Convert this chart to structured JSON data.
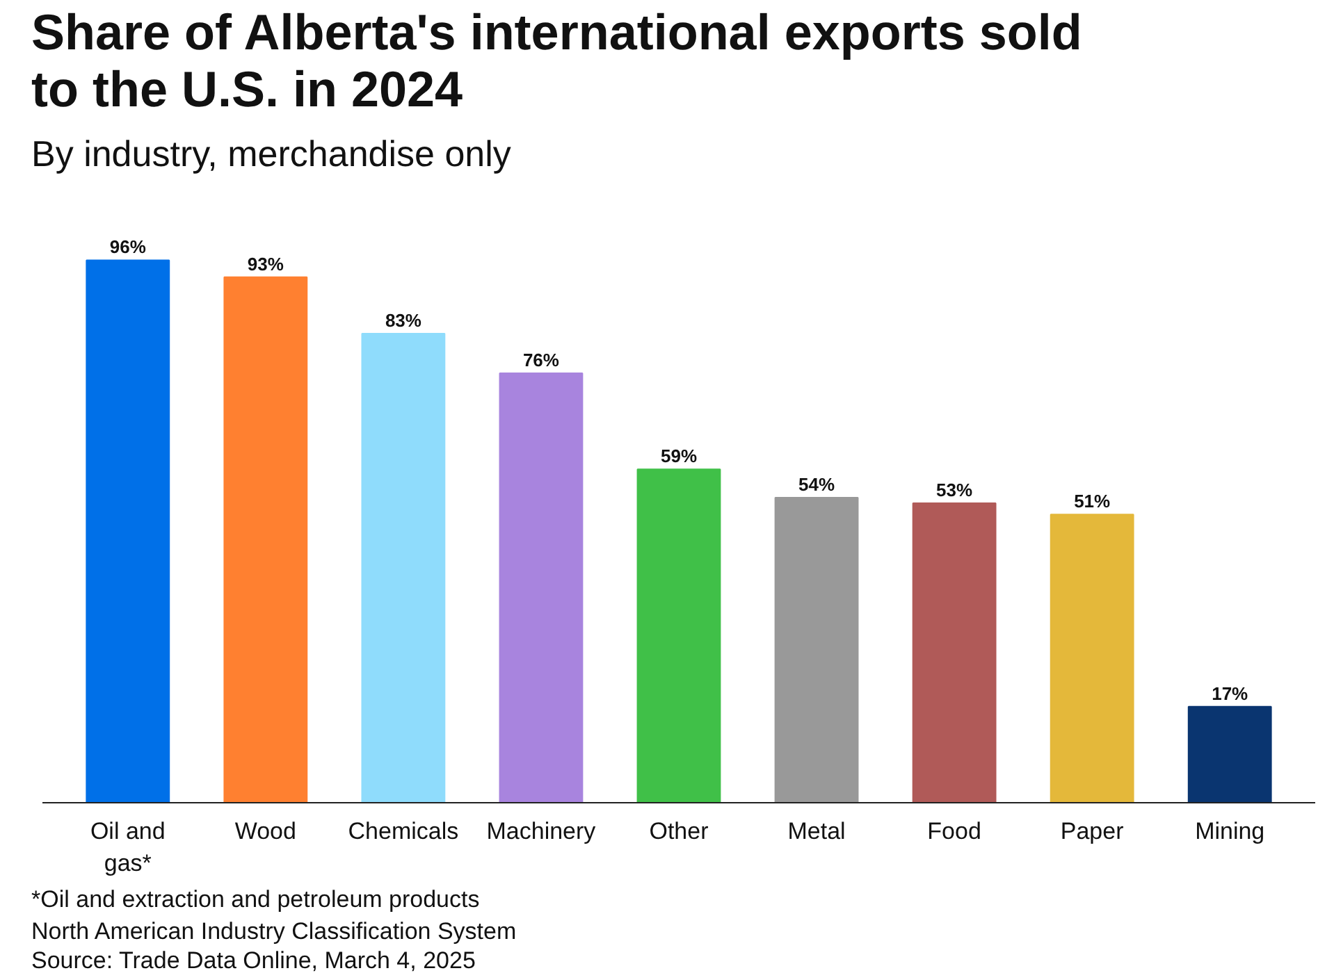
{
  "chart_data": {
    "type": "bar",
    "title": "Share of Alberta's international exports sold to the U.S. in 2024",
    "subtitle": "By industry, merchandise only",
    "categories": [
      "Oil and gas*",
      "Wood",
      "Chemicals",
      "Machinery",
      "Other",
      "Metal",
      "Food",
      "Paper",
      "Mining"
    ],
    "values": [
      96,
      93,
      83,
      76,
      59,
      54,
      53,
      51,
      17
    ],
    "value_labels": [
      "96%",
      "93%",
      "83%",
      "76%",
      "59%",
      "54%",
      "53%",
      "51%",
      "17%"
    ],
    "colors": [
      "#0070e8",
      "#ff8030",
      "#8fdcfc",
      "#a884de",
      "#40c048",
      "#999999",
      "#b05a58",
      "#e4b83a",
      "#0a3570"
    ],
    "grid": false,
    "annotations": [
      "*Oil and extraction and petroleum products",
      "North American Industry Classification System",
      "Source: Trade Data Online, March 4, 2025"
    ]
  }
}
